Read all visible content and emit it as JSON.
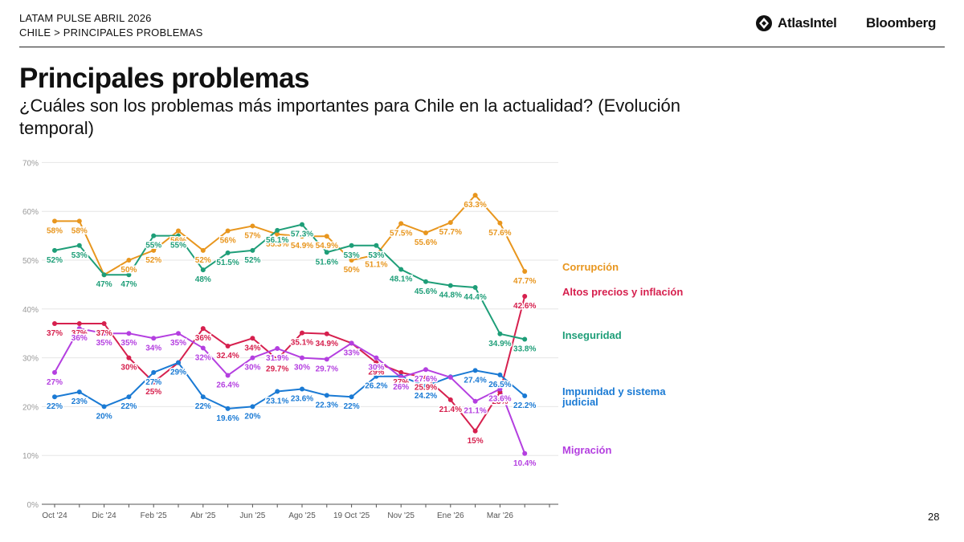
{
  "header": {
    "line1": "LATAM PULSE ABRIL 2026",
    "line2": "CHILE > PRINCIPALES PROBLEMAS",
    "logo_atlas": "AtlasIntel",
    "logo_bloomberg": "Bloomberg"
  },
  "title": "Principales problemas",
  "subtitle": "¿Cuáles son los problemas más importantes para Chile en la actualidad? (Evolución temporal)",
  "page_number": "28",
  "chart_data": {
    "type": "line",
    "y_ticks": [
      "0%",
      "10%",
      "20%",
      "30%",
      "40%",
      "50%",
      "60%",
      "70%"
    ],
    "ylim": [
      0,
      70
    ],
    "x_ticks": [
      {
        "i": 0,
        "label": "Oct '24"
      },
      {
        "i": 2,
        "label": "Dic '24"
      },
      {
        "i": 4,
        "label": "Feb '25"
      },
      {
        "i": 6,
        "label": "Abr '25"
      },
      {
        "i": 8,
        "label": "Jun '25"
      },
      {
        "i": 10,
        "label": "Ago '25"
      },
      {
        "i": 12,
        "label": "19 Oct '25"
      },
      {
        "i": 14,
        "label": "Nov '25"
      },
      {
        "i": 16,
        "label": "Ene '26"
      },
      {
        "i": 18,
        "label": "Mar '26"
      }
    ],
    "n_points": 20,
    "grid": true,
    "series": [
      {
        "name": "Corrupción",
        "color": "#E8961E",
        "values": [
          58,
          58,
          47,
          50,
          52,
          56,
          52,
          56,
          57,
          55.3,
          54.9,
          54.9,
          50,
          51.1,
          57.5,
          55.6,
          57.7,
          63.3,
          57.6,
          47.7
        ],
        "labels": [
          "58%",
          "58%",
          "",
          "50%",
          "52%",
          "56%",
          "52%",
          "56%",
          "57%",
          "55.3%",
          "54.9%",
          "54.9%",
          "50%",
          "51.1%",
          "57.5%",
          "55.6%",
          "57.7%",
          "63.3%",
          "57.6%",
          "47.7%"
        ]
      },
      {
        "name": "Altos precios y inflación",
        "color": "#D6204E",
        "values": [
          37,
          37,
          37,
          30,
          25,
          29,
          36,
          32.4,
          34,
          29.7,
          35.1,
          34.9,
          33,
          29,
          27,
          25.9,
          21.4,
          15,
          23,
          42.6
        ],
        "labels": [
          "37%",
          "37%",
          "37%",
          "30%",
          "25%",
          "",
          "36%",
          "32.4%",
          "34%",
          "29.7%",
          "35.1%",
          "34.9%",
          "",
          "29%",
          "27%",
          "25.9%",
          "21.4%",
          "15%",
          "23%",
          "42.6%"
        ]
      },
      {
        "name": "Inseguridad",
        "color": "#1E9E78",
        "values": [
          52,
          53,
          47,
          47,
          55,
          55,
          48,
          51.5,
          52,
          56.1,
          57.3,
          51.6,
          53,
          53,
          48.1,
          45.6,
          44.8,
          44.4,
          34.9,
          33.8
        ],
        "labels": [
          "52%",
          "53%",
          "47%",
          "47%",
          "55%",
          "55%",
          "48%",
          "51.5%",
          "52%",
          "56.1%",
          "57.3%",
          "51.6%",
          "53%",
          "53%",
          "48.1%",
          "45.6%",
          "44.8%",
          "44.4%",
          "34.9%",
          "33.8%"
        ]
      },
      {
        "name": "Impunidad y sistema judicial",
        "color": "#1A7AD4",
        "values": [
          22,
          23,
          20,
          22,
          27,
          29,
          22,
          19.6,
          20,
          23.1,
          23.6,
          22.3,
          22,
          26.2,
          26.2,
          24.2,
          26.1,
          27.4,
          26.5,
          22.2
        ],
        "labels": [
          "22%",
          "23%",
          "20%",
          "22%",
          "27%",
          "29%",
          "22%",
          "19.6%",
          "20%",
          "23.1%",
          "23.6%",
          "22.3%",
          "22%",
          "26.2%",
          "",
          "24.2%",
          "",
          "27.4%",
          "26.5%",
          "22.2%"
        ]
      },
      {
        "name": "Migración",
        "color": "#B43FE0",
        "values": [
          27,
          36,
          35,
          35,
          34,
          35,
          32,
          26.4,
          30,
          31.9,
          30,
          29.7,
          33,
          30,
          26,
          27.6,
          26,
          21.1,
          23.6,
          10.4
        ],
        "labels": [
          "27%",
          "36%",
          "35%",
          "35%",
          "34%",
          "35%",
          "32%",
          "26.4%",
          "30%",
          "31.9%",
          "30%",
          "29.7%",
          "33%",
          "30%",
          "26%",
          "27.6%",
          "",
          "21.1%",
          "23.6%",
          "10.4%"
        ]
      }
    ]
  }
}
